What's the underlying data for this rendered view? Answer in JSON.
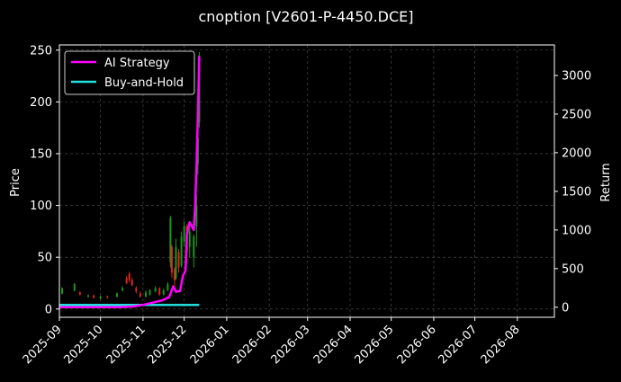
{
  "chart_data": {
    "type": "line",
    "title": "cnoption [V2601-P-4450.DCE]",
    "xlabel": "",
    "ylabel_left": "Price",
    "ylabel_right": "Return",
    "xlim": [
      "2025-09-01",
      "2026-08-28"
    ],
    "ylim_left": [
      -8,
      255
    ],
    "ylim_right": [
      -130,
      3395
    ],
    "x_ticks": [
      "2025-09",
      "2025-10",
      "2025-11",
      "2025-12",
      "2026-01",
      "2026-02",
      "2026-03",
      "2026-04",
      "2026-05",
      "2026-06",
      "2026-07",
      "2026-08"
    ],
    "y_ticks_left": [
      0,
      50,
      100,
      150,
      200,
      250
    ],
    "y_ticks_right": [
      0,
      500,
      1000,
      1500,
      2000,
      2500,
      3000
    ],
    "grid": true,
    "legend_position": "top-left",
    "colors": {
      "background": "#000000",
      "grid": "#555555",
      "up": "#1a9a1a",
      "down": "#e0261c",
      "ai_strategy": "#ff00ff",
      "buy_and_hold": "#22dddd"
    },
    "series": [
      {
        "name": "AI Strategy",
        "axis": "right",
        "points": [
          [
            "2025-09-01",
            0
          ],
          [
            "2025-10-01",
            0
          ],
          [
            "2025-10-15",
            0
          ],
          [
            "2025-10-25",
            10
          ],
          [
            "2025-11-01",
            30
          ],
          [
            "2025-11-08",
            60
          ],
          [
            "2025-11-15",
            90
          ],
          [
            "2025-11-20",
            130
          ],
          [
            "2025-11-23",
            270
          ],
          [
            "2025-11-25",
            200
          ],
          [
            "2025-11-28",
            210
          ],
          [
            "2025-11-30",
            400
          ],
          [
            "2025-12-02",
            480
          ],
          [
            "2025-12-03",
            950
          ],
          [
            "2025-12-05",
            1100
          ],
          [
            "2025-12-08",
            1000
          ],
          [
            "2025-12-09",
            1300
          ],
          [
            "2025-12-10",
            1850
          ],
          [
            "2025-12-11",
            2500
          ],
          [
            "2025-12-12",
            3250
          ]
        ]
      },
      {
        "name": "Buy-and-Hold",
        "axis": "right",
        "points": [
          [
            "2025-09-01",
            30
          ],
          [
            "2025-12-12",
            30
          ]
        ]
      }
    ],
    "candles": [
      [
        "2025-09-03",
        15,
        20,
        14,
        21
      ],
      [
        "2025-09-12",
        18,
        24,
        17,
        25
      ],
      [
        "2025-09-16",
        16,
        14,
        13,
        17
      ],
      [
        "2025-09-22",
        12,
        13,
        11,
        14
      ],
      [
        "2025-09-26",
        13,
        11,
        10,
        14
      ],
      [
        "2025-10-01",
        10,
        12,
        9,
        13
      ],
      [
        "2025-10-06",
        12,
        11,
        10,
        13
      ],
      [
        "2025-10-13",
        12,
        15,
        11,
        16
      ],
      [
        "2025-10-17",
        18,
        20,
        17,
        22
      ],
      [
        "2025-10-20",
        30,
        25,
        24,
        32
      ],
      [
        "2025-10-22",
        34,
        28,
        26,
        36
      ],
      [
        "2025-10-24",
        28,
        23,
        22,
        30
      ],
      [
        "2025-10-27",
        20,
        17,
        15,
        22
      ],
      [
        "2025-10-30",
        15,
        12,
        11,
        17
      ],
      [
        "2025-11-03",
        12,
        16,
        11,
        18
      ],
      [
        "2025-11-06",
        14,
        18,
        13,
        19
      ],
      [
        "2025-11-10",
        17,
        20,
        16,
        22
      ],
      [
        "2025-11-13",
        20,
        14,
        13,
        21
      ],
      [
        "2025-11-16",
        14,
        18,
        13,
        20
      ],
      [
        "2025-11-19",
        18,
        24,
        17,
        26
      ],
      [
        "2025-11-21",
        45,
        88,
        40,
        90
      ],
      [
        "2025-11-22",
        60,
        35,
        30,
        62
      ],
      [
        "2025-11-24",
        38,
        28,
        22,
        40
      ],
      [
        "2025-11-25",
        30,
        60,
        28,
        68
      ],
      [
        "2025-11-27",
        55,
        40,
        35,
        58
      ],
      [
        "2025-11-29",
        42,
        70,
        40,
        75
      ],
      [
        "2025-12-01",
        65,
        80,
        60,
        85
      ],
      [
        "2025-12-03",
        80,
        55,
        45,
        82
      ],
      [
        "2025-12-05",
        60,
        75,
        50,
        78
      ],
      [
        "2025-12-08",
        50,
        70,
        40,
        72
      ],
      [
        "2025-12-10",
        80,
        100,
        60,
        110
      ],
      [
        "2025-12-11",
        140,
        165,
        130,
        170
      ],
      [
        "2025-12-12",
        180,
        245,
        175,
        248
      ]
    ]
  }
}
